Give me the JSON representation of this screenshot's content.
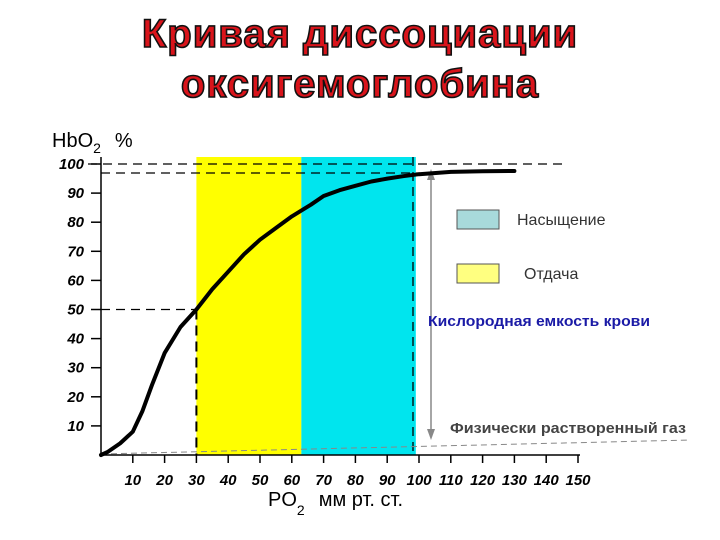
{
  "title": {
    "line1": "Кривая  диссоциации",
    "line2": "оксигемоглобина"
  },
  "chart_data": {
    "type": "line",
    "title": "Кривая  диссоциации оксигемоглобина",
    "ylabel": {
      "main": "HbO",
      "sub": "2",
      "unit": "%"
    },
    "xlabel": {
      "main": "PO",
      "sub": "2",
      "unit": "мм рт. ст."
    },
    "xlim": [
      0,
      150
    ],
    "ylim": [
      0,
      100
    ],
    "x_ticks": [
      10,
      20,
      30,
      40,
      50,
      60,
      70,
      80,
      90,
      100,
      110,
      120,
      130,
      140,
      150
    ],
    "y_ticks": [
      10,
      20,
      30,
      40,
      50,
      60,
      70,
      80,
      90,
      100
    ],
    "series": [
      {
        "x": [
          0,
          2,
          6,
          10,
          13,
          16,
          20,
          25,
          30,
          35,
          40,
          45,
          50,
          55,
          60,
          63,
          66,
          70,
          75,
          80,
          85,
          90,
          95,
          100,
          110,
          120,
          130
        ],
        "y": [
          0,
          1,
          4,
          8,
          15,
          24,
          35,
          44,
          50,
          57,
          63,
          69,
          74,
          78,
          82,
          84,
          86,
          89,
          91,
          92.5,
          94,
          95,
          95.8,
          96.5,
          97.3,
          97.5,
          97.6
        ],
        "color": "#000000"
      }
    ],
    "regions": [
      {
        "x_from": 30,
        "x_to": 63,
        "color": "#ffff00"
      },
      {
        "x_from": 63,
        "x_to": 99,
        "color": "#00e5ee"
      }
    ],
    "legend": [
      {
        "label": "Насыщение",
        "color": "#a8dadb"
      },
      {
        "label": "Отдача",
        "color": "#ffff80"
      }
    ],
    "annotations": [
      {
        "text": "Кислородная емкость крови",
        "color": "#1a1aa6"
      },
      {
        "text": "Физически растворенный газ",
        "color": "#444444"
      }
    ],
    "grid": false
  }
}
